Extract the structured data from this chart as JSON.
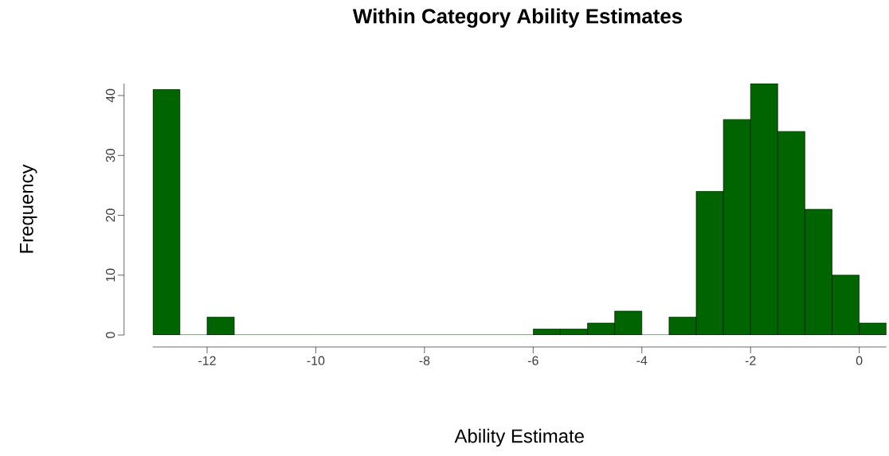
{
  "chart_data": {
    "type": "histogram",
    "title": "Within Category Ability Estimates",
    "xlabel": "Ability Estimate",
    "ylabel": "Frequency",
    "bins": [
      -13,
      -12.5,
      -12,
      -11.5,
      -11,
      -10.5,
      -10,
      -9.5,
      -9,
      -8.5,
      -8,
      -7.5,
      -7,
      -6.5,
      -6,
      -5.5,
      -5,
      -4.5,
      -4,
      -3.5,
      -3,
      -2.5,
      -2,
      -1.5,
      -1,
      -0.5,
      0,
      0.5
    ],
    "values": [
      41,
      0,
      3,
      0,
      0,
      0,
      0,
      0,
      0,
      0,
      0,
      0,
      0,
      0,
      1,
      1,
      2,
      4,
      0,
      3,
      24,
      36,
      42,
      34,
      21,
      10,
      2
    ],
    "color": "#006400",
    "xlim": [
      -13,
      0.5
    ],
    "ylim": [
      0,
      42
    ],
    "xticks": [
      -12,
      -10,
      -8,
      -6,
      -4,
      -2,
      0
    ],
    "yticks": [
      0,
      10,
      20,
      30,
      40
    ],
    "grid": false
  }
}
